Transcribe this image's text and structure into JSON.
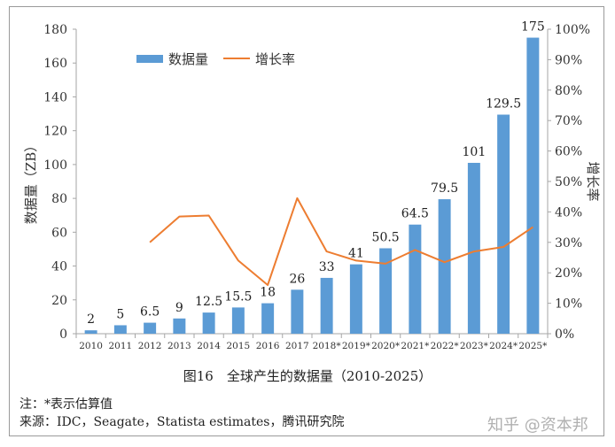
{
  "chart_data": {
    "type": "bar",
    "categories": [
      "2010",
      "2011",
      "2012",
      "2013",
      "2014",
      "2015",
      "2016",
      "2017",
      "2018*",
      "2019*",
      "2020*",
      "2021*",
      "2022*",
      "2023*",
      "2024*",
      "2025*"
    ],
    "series": [
      {
        "name": "数据量",
        "type": "bar",
        "axis": "left",
        "color": "#5b9bd5",
        "values": [
          2,
          5,
          6.5,
          9,
          12.5,
          15.5,
          18,
          26,
          33,
          41,
          50.5,
          64.5,
          79.5,
          101,
          129.5,
          175
        ],
        "labels": [
          "2",
          "5",
          "6.5",
          "9",
          "12.5",
          "15.5",
          "18",
          "26",
          "33",
          "41",
          "50.5",
          "64.5",
          "79.5",
          "101",
          "129.5",
          "175"
        ]
      },
      {
        "name": "增长率",
        "type": "line",
        "axis": "right",
        "color": "#ed7d31",
        "values": [
          null,
          null,
          30,
          38.5,
          38.8,
          24,
          16,
          44.5,
          27,
          24,
          23,
          27.5,
          23.5,
          27,
          28.5,
          35
        ]
      }
    ],
    "ylabel": "数据量（ZB）",
    "y2label": "增长率",
    "ylim": [
      0,
      180
    ],
    "yticks": [
      0,
      20,
      40,
      60,
      80,
      100,
      120,
      140,
      160,
      180
    ],
    "y2lim": [
      0,
      100
    ],
    "y2ticks": [
      "0%",
      "10%",
      "20%",
      "30%",
      "40%",
      "50%",
      "60%",
      "70%",
      "80%",
      "90%",
      "100%"
    ],
    "legend_position": "top-left",
    "grid": false
  },
  "caption": "图16　全球产生的数据量（2010-2025）",
  "notes": {
    "note1": "注：*表示估算值",
    "source": "来源：IDC，Seagate，Statista estimates，腾讯研究院"
  },
  "watermark": "知乎 @资本邦"
}
